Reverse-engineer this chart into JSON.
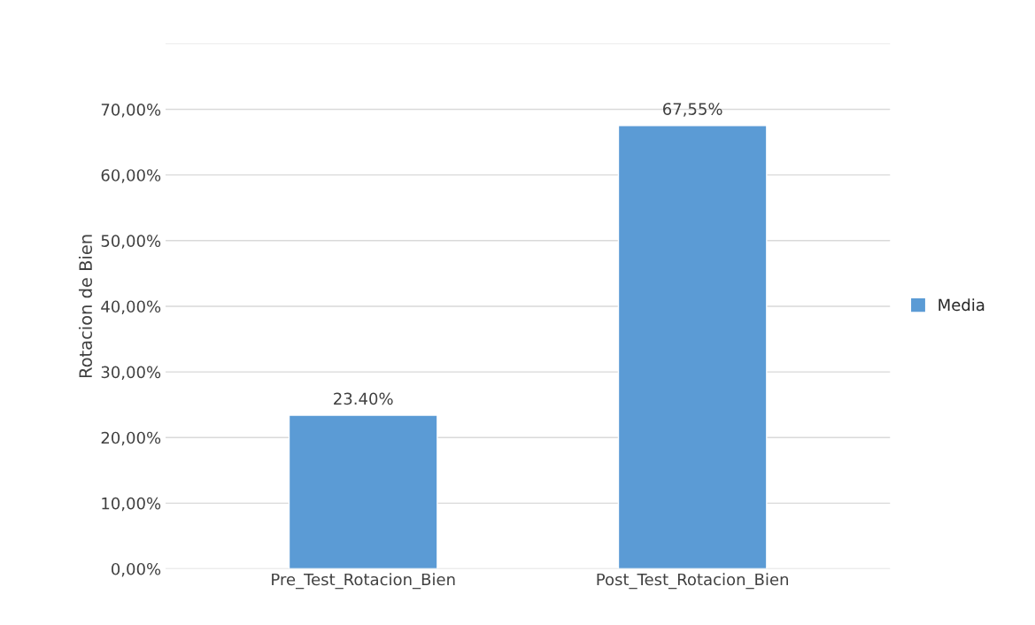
{
  "chart_data": {
    "type": "bar",
    "ylabel": "Rotacion de Bien",
    "categories": [
      "Pre_Test_Rotacion_Bien",
      "Post_Test_Rotacion_Bien"
    ],
    "series": [
      {
        "name": "Media",
        "color": "#5b9bd5",
        "values": [
          23.4,
          67.55
        ],
        "value_labels": [
          "23.40%",
          "67,55%"
        ]
      }
    ],
    "ylim": [
      0,
      80
    ],
    "yticks": [
      {
        "value": 0,
        "label": "0,00%"
      },
      {
        "value": 10,
        "label": "10,00%"
      },
      {
        "value": 20,
        "label": "20,00%"
      },
      {
        "value": 30,
        "label": "30,00%"
      },
      {
        "value": 40,
        "label": "40,00%"
      },
      {
        "value": 50,
        "label": "50,00%"
      },
      {
        "value": 60,
        "label": "60,00%"
      },
      {
        "value": 70,
        "label": "70,00%"
      },
      {
        "value": 80,
        "label": null
      }
    ],
    "grid": "y",
    "legend": "right"
  }
}
